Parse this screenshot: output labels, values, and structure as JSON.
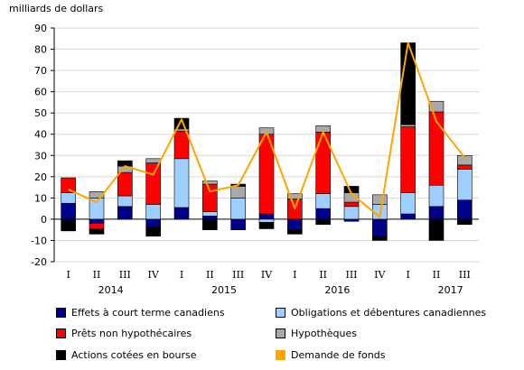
{
  "chart_data": {
    "type": "bar",
    "subtype": "stacked-bar-with-line",
    "ylabel": "milliards de dollars",
    "ylim": [
      -20,
      90
    ],
    "yticks": [
      90,
      80,
      70,
      60,
      50,
      40,
      30,
      20,
      10,
      0,
      -10,
      -20
    ],
    "grid": true,
    "categories": [
      "I",
      "II",
      "III",
      "IV",
      "I",
      "II",
      "III",
      "IV",
      "I",
      "II",
      "III",
      "IV",
      "I",
      "II",
      "III"
    ],
    "years": [
      {
        "label": "2014",
        "start": 0,
        "end": 3
      },
      {
        "label": "2015",
        "start": 4,
        "end": 7
      },
      {
        "label": "2016",
        "start": 8,
        "end": 11
      },
      {
        "label": "2017",
        "start": 12,
        "end": 14
      }
    ],
    "series": [
      {
        "name": "Effets à court terme canadiens",
        "color": "#00008b",
        "values": [
          7.5,
          -2,
          6,
          -3.5,
          5.5,
          1.5,
          -5,
          2.5,
          -5,
          5,
          -1,
          -8,
          2.5,
          6,
          9
        ]
      },
      {
        "name": "Obligations et débentures canadiennes",
        "color": "#9fcfff",
        "values": [
          5,
          10,
          5,
          7,
          23,
          2,
          10,
          -1.5,
          0,
          7,
          6,
          7,
          10,
          10,
          14.5
        ]
      },
      {
        "name": "Prêts non hypothécaires",
        "color": "#ff0000",
        "values": [
          7,
          -2.5,
          11,
          19.5,
          13,
          13,
          0,
          37.5,
          9.5,
          29,
          2,
          0,
          31,
          34.5,
          2
        ]
      },
      {
        "name": "Hypothèques",
        "color": "#a9a9a9",
        "values": [
          0,
          3,
          3,
          2,
          1,
          1.5,
          5.5,
          3,
          2.5,
          3,
          4.5,
          4.5,
          1,
          5,
          4.5
        ]
      },
      {
        "name": "Actions cotées en bourse",
        "color": "#000000",
        "values": [
          -5.5,
          -2.5,
          2.5,
          -4.5,
          5,
          -5,
          1,
          -3,
          -2,
          -2.5,
          3,
          -2,
          38.5,
          -10,
          -2.5
        ]
      }
    ],
    "line": {
      "name": "Demande de fonds",
      "color": "#ffa500",
      "values": [
        14,
        8,
        25,
        21,
        47,
        13,
        16,
        41,
        5,
        41,
        12,
        1,
        83,
        46,
        29
      ]
    }
  }
}
